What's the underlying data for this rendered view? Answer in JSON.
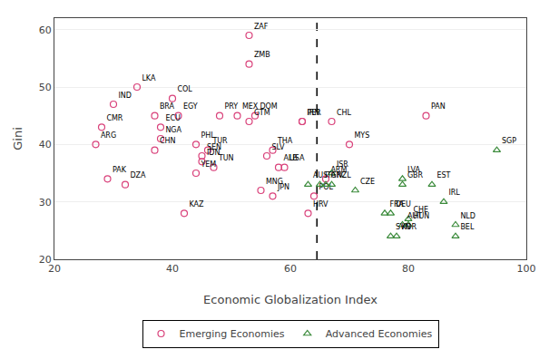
{
  "chart_data": {
    "type": "scatter",
    "xlabel": "Economic Globalization Index",
    "ylabel": "Gini",
    "xlim": [
      20,
      100
    ],
    "ylim": [
      20,
      62
    ],
    "xticks": [
      20,
      40,
      60,
      80,
      100
    ],
    "yticks": [
      20,
      30,
      40,
      50,
      60
    ],
    "grid": "y",
    "legend": "bottom",
    "vline": 64.5,
    "series": [
      {
        "name": "Emerging Economies",
        "color": "#d9417a",
        "marker": "circle-open",
        "labels": [
          "ZAF",
          "ZMB",
          "LKA",
          "COL",
          "IND",
          "BRA",
          "EGY",
          "PRY",
          "MEX",
          "DOM",
          "GTM",
          "IRN",
          "PER",
          "CMR",
          "ECU",
          "NGA",
          "PHL",
          "MYS",
          "CHL",
          "PAN",
          "ARG",
          "CHN",
          "THA",
          "TUR",
          "SLV",
          "SEN",
          "IDN",
          "TUN",
          "ALB",
          "USA",
          "YEM",
          "PAK",
          "ARM",
          "DZA",
          "MNG",
          "POL",
          "JPN",
          "HRV",
          "KAZ"
        ],
        "x": [
          53,
          53,
          34,
          40,
          30,
          37,
          41,
          48,
          51,
          54,
          53,
          62,
          62,
          28,
          38,
          38,
          44,
          70,
          67,
          83,
          27,
          37,
          57,
          46,
          56,
          45,
          45,
          47,
          58,
          59,
          44,
          29,
          66,
          32,
          55,
          64,
          57,
          63,
          42
        ],
        "values": [
          59,
          54,
          50,
          48,
          47,
          45,
          45,
          45,
          45,
          45,
          44,
          44,
          44,
          43,
          43,
          41,
          40,
          40,
          44,
          45,
          40,
          39,
          39,
          39,
          38,
          38,
          37,
          36,
          36,
          36,
          35,
          34,
          34,
          33,
          32,
          31,
          31,
          28,
          28
        ]
      },
      {
        "name": "Advanced Economies",
        "color": "#3a8a3a",
        "marker": "triangle-up-open",
        "labels": [
          "SGP",
          "ISR",
          "AUS",
          "ITA",
          "GRC",
          "NZL",
          "CZE",
          "GBR",
          "LVA",
          "EST",
          "IRL",
          "FRA",
          "DEU",
          "CHE",
          "AUT",
          "HUN",
          "NLD",
          "SVN",
          "KOR",
          "BEL"
        ],
        "x": [
          95,
          67,
          63,
          65,
          66,
          67,
          71,
          79,
          79,
          84,
          86,
          76,
          77,
          80,
          79,
          80,
          88,
          77,
          78,
          88
        ],
        "values": [
          39,
          35,
          33,
          33,
          33,
          33,
          32,
          33,
          34,
          33,
          30,
          28,
          28,
          27,
          26,
          26,
          26,
          24,
          24,
          24
        ]
      }
    ]
  }
}
